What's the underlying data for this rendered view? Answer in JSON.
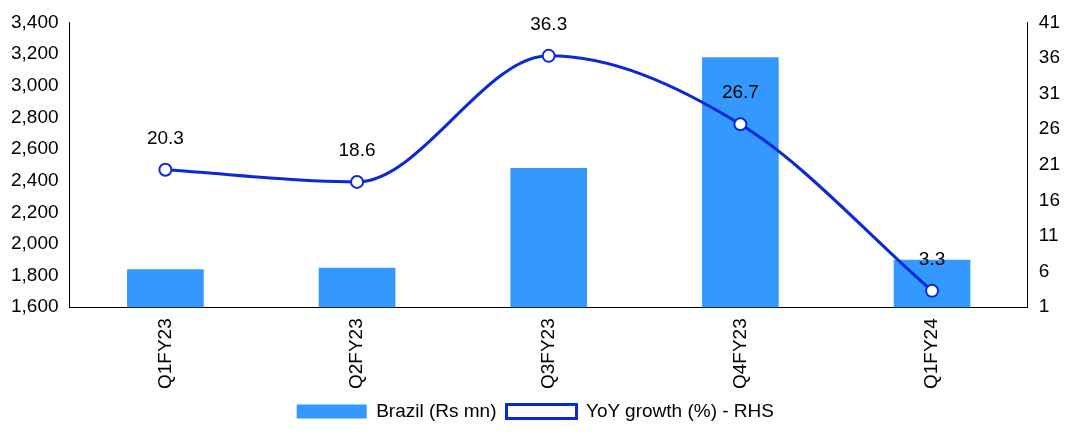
{
  "chart_data": {
    "type": "bar",
    "categories": [
      "Q1FY23",
      "Q2FY23",
      "Q3FY23",
      "Q4FY23",
      "Q1FY24"
    ],
    "series": [
      {
        "name": "Brazil (Rs mn)",
        "color": "#3399ff",
        "values": [
          1840,
          1850,
          2480,
          3180,
          1900
        ]
      },
      {
        "name": "YoY growth (%) - RHS",
        "type": "line",
        "axis": "y2",
        "color": "#0a2ad6",
        "marker": "circle",
        "values": [
          20.3,
          18.6,
          36.3,
          26.7,
          3.3
        ],
        "value_labels": [
          "20.3",
          "18.6",
          "36.3",
          "26.7",
          "3.3"
        ]
      }
    ],
    "ylim": [
      1600,
      3400
    ],
    "yticks": [
      {
        "value": 1600,
        "label": "1,600"
      },
      {
        "value": 1800,
        "label": "1,800"
      },
      {
        "value": 2000,
        "label": "2,000"
      },
      {
        "value": 2200,
        "label": "2,200"
      },
      {
        "value": 2400,
        "label": "2,400"
      },
      {
        "value": 2600,
        "label": "2,600"
      },
      {
        "value": 2800,
        "label": "2,800"
      },
      {
        "value": 3000,
        "label": "3,000"
      },
      {
        "value": 3200,
        "label": "3,200"
      },
      {
        "value": 3400,
        "label": "3,400"
      }
    ],
    "y2lim": [
      1,
      41
    ],
    "y2ticks": [
      1,
      6,
      11,
      16,
      21,
      26,
      31,
      36,
      41
    ],
    "grid": false,
    "legend": "bottom"
  }
}
